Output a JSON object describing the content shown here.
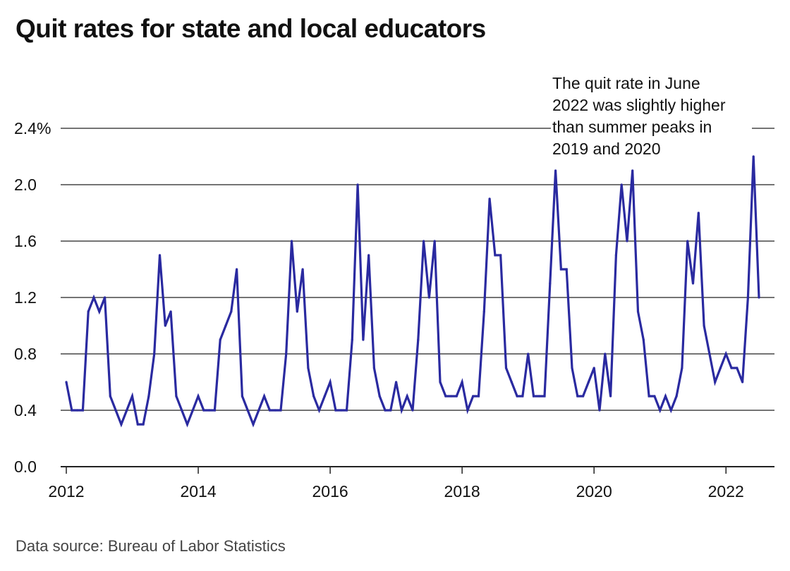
{
  "title": "Quit rates for state and local educators",
  "source": "Data source: Bureau of Labor Statistics",
  "colors": {
    "line": "#2a2aa0",
    "grid": "#222222",
    "text": "#111111"
  },
  "chart_data": {
    "type": "line",
    "title": "Quit rates for state and local educators",
    "xlabel": "",
    "ylabel": "",
    "y_ticks": [
      {
        "value": 0.0,
        "label": "0.0"
      },
      {
        "value": 0.4,
        "label": "0.4"
      },
      {
        "value": 0.8,
        "label": "0.8"
      },
      {
        "value": 1.2,
        "label": "1.2"
      },
      {
        "value": 1.6,
        "label": "1.6"
      },
      {
        "value": 2.0,
        "label": "2.0"
      },
      {
        "value": 2.4,
        "label": "2.4%"
      }
    ],
    "x_ticks": [
      {
        "value": 2012,
        "label": "2012"
      },
      {
        "value": 2014,
        "label": "2014"
      },
      {
        "value": 2016,
        "label": "2016"
      },
      {
        "value": 2018,
        "label": "2018"
      },
      {
        "value": 2020,
        "label": "2020"
      },
      {
        "value": 2022,
        "label": "2022"
      }
    ],
    "ylim": [
      0,
      2.4
    ],
    "xlim": [
      "2012-01",
      "2022-07"
    ],
    "grid": "horizontal",
    "annotation": {
      "lines": [
        "The quit rate in June",
        "2022 was slightly higher",
        "than summer peaks in",
        "2019 and 2020"
      ]
    },
    "series": [
      {
        "x": [
          "2012-01",
          "2012-02",
          "2012-03",
          "2012-04",
          "2012-05",
          "2012-06",
          "2012-07",
          "2012-08",
          "2012-09",
          "2012-10",
          "2012-11",
          "2012-12",
          "2013-01",
          "2013-02",
          "2013-03",
          "2013-04",
          "2013-05",
          "2013-06",
          "2013-07",
          "2013-08",
          "2013-09",
          "2013-10",
          "2013-11",
          "2013-12",
          "2014-01",
          "2014-02",
          "2014-03",
          "2014-04",
          "2014-05",
          "2014-06",
          "2014-07",
          "2014-08",
          "2014-09",
          "2014-10",
          "2014-11",
          "2014-12",
          "2015-01",
          "2015-02",
          "2015-03",
          "2015-04",
          "2015-05",
          "2015-06",
          "2015-07",
          "2015-08",
          "2015-09",
          "2015-10",
          "2015-11",
          "2015-12",
          "2016-01",
          "2016-02",
          "2016-03",
          "2016-04",
          "2016-05",
          "2016-06",
          "2016-07",
          "2016-08",
          "2016-09",
          "2016-10",
          "2016-11",
          "2016-12",
          "2017-01",
          "2017-02",
          "2017-03",
          "2017-04",
          "2017-05",
          "2017-06",
          "2017-07",
          "2017-08",
          "2017-09",
          "2017-10",
          "2017-11",
          "2017-12",
          "2018-01",
          "2018-02",
          "2018-03",
          "2018-04",
          "2018-05",
          "2018-06",
          "2018-07",
          "2018-08",
          "2018-09",
          "2018-10",
          "2018-11",
          "2018-12",
          "2019-01",
          "2019-02",
          "2019-03",
          "2019-04",
          "2019-05",
          "2019-06",
          "2019-07",
          "2019-08",
          "2019-09",
          "2019-10",
          "2019-11",
          "2019-12",
          "2020-01",
          "2020-02",
          "2020-03",
          "2020-04",
          "2020-05",
          "2020-06",
          "2020-07",
          "2020-08",
          "2020-09",
          "2020-10",
          "2020-11",
          "2020-12",
          "2021-01",
          "2021-02",
          "2021-03",
          "2021-04",
          "2021-05",
          "2021-06",
          "2021-07",
          "2021-08",
          "2021-09",
          "2021-10",
          "2021-11",
          "2021-12",
          "2022-01",
          "2022-02",
          "2022-03",
          "2022-04",
          "2022-05",
          "2022-06",
          "2022-07"
        ],
        "values": [
          0.6,
          0.4,
          0.4,
          0.4,
          1.1,
          1.2,
          1.1,
          1.2,
          0.5,
          0.4,
          0.3,
          0.4,
          0.5,
          0.3,
          0.3,
          0.5,
          0.8,
          1.5,
          1.0,
          1.1,
          0.5,
          0.4,
          0.3,
          0.4,
          0.5,
          0.4,
          0.4,
          0.4,
          0.9,
          1.0,
          1.1,
          1.4,
          0.5,
          0.4,
          0.3,
          0.4,
          0.5,
          0.4,
          0.4,
          0.4,
          0.8,
          1.6,
          1.1,
          1.4,
          0.7,
          0.5,
          0.4,
          0.5,
          0.6,
          0.4,
          0.4,
          0.4,
          0.9,
          2.0,
          0.9,
          1.5,
          0.7,
          0.5,
          0.4,
          0.4,
          0.6,
          0.4,
          0.5,
          0.4,
          0.9,
          1.6,
          1.2,
          1.6,
          0.6,
          0.5,
          0.5,
          0.5,
          0.6,
          0.4,
          0.5,
          0.5,
          1.1,
          1.9,
          1.5,
          1.5,
          0.7,
          0.6,
          0.5,
          0.5,
          0.8,
          0.5,
          0.5,
          0.5,
          1.3,
          2.1,
          1.4,
          1.4,
          0.7,
          0.5,
          0.5,
          0.6,
          0.7,
          0.4,
          0.8,
          0.5,
          1.5,
          2.0,
          1.6,
          2.1,
          1.1,
          0.9,
          0.5,
          0.5,
          0.4,
          0.5,
          0.4,
          0.5,
          0.7,
          1.6,
          1.3,
          1.8,
          1.0,
          0.8,
          0.6,
          0.7,
          0.8,
          0.7,
          0.7,
          0.6,
          1.2,
          2.2,
          1.2
        ]
      }
    ]
  }
}
